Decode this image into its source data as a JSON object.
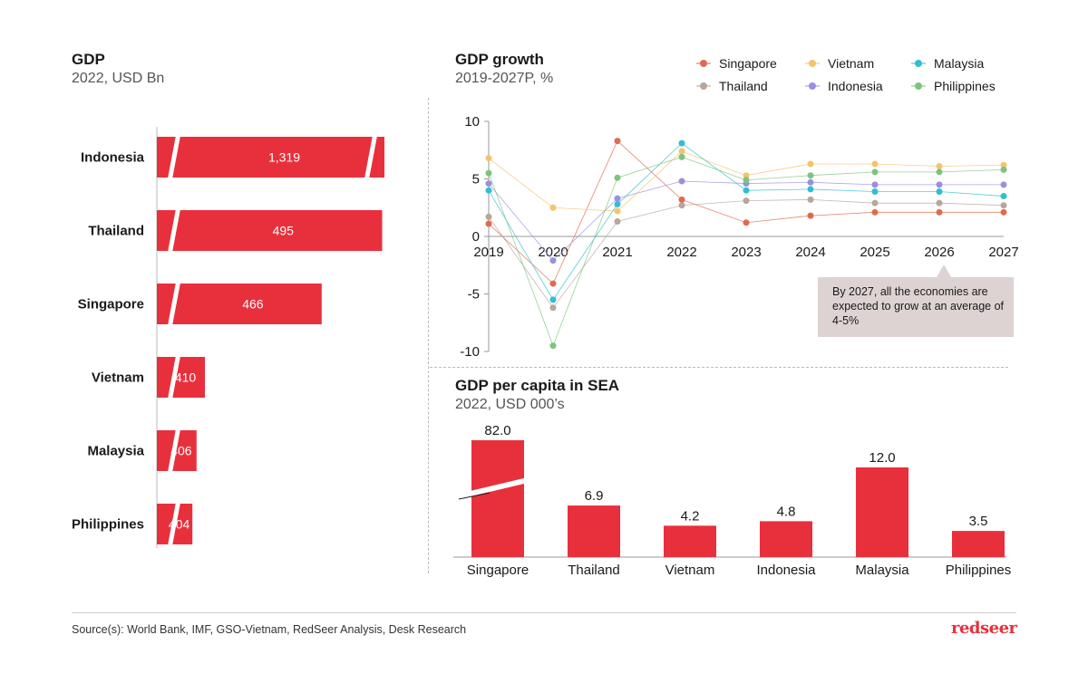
{
  "brand": {
    "accent": "#e8303c",
    "logo_text": "redseer"
  },
  "footer": {
    "source": "Source(s): World Bank, IMF, GSO-Vietnam, RedSeer Analysis, Desk Research"
  },
  "callout": {
    "text": "By 2027, all the economies are expected to grow at an average of 4-5%"
  },
  "chart_data": [
    {
      "type": "bar",
      "orientation": "horizontal",
      "title": "GDP",
      "subtitle": "2022, USD Bn",
      "categories": [
        "Indonesia",
        "Thailand",
        "Singapore",
        "Vietnam",
        "Malaysia",
        "Philippines"
      ],
      "values": [
        1319,
        495,
        466,
        410,
        406,
        404
      ],
      "value_labels": [
        "1,319",
        "495",
        "466",
        "410",
        "406",
        "404"
      ],
      "axis_break": true,
      "color": "#e8303c"
    },
    {
      "type": "line",
      "title": "GDP growth",
      "subtitle": "2019-2027P, %",
      "x": [
        "2019",
        "2020",
        "2021",
        "2022",
        "2023",
        "2024",
        "2025",
        "2026",
        "2027"
      ],
      "ylim": [
        -10,
        10
      ],
      "yticks": [
        "10",
        "5",
        "0",
        "-5",
        "-10"
      ],
      "legend_position": "top-right",
      "series": [
        {
          "name": "Singapore",
          "color": "#e06a4e",
          "values": [
            1.1,
            -4.1,
            8.3,
            3.2,
            1.2,
            1.8,
            2.1,
            2.1,
            2.1
          ]
        },
        {
          "name": "Vietnam",
          "color": "#f5c36b",
          "values": [
            6.8,
            2.5,
            2.2,
            7.4,
            5.3,
            6.3,
            6.3,
            6.1,
            6.2
          ]
        },
        {
          "name": "Malaysia",
          "color": "#2fbfd0",
          "values": [
            4.0,
            -5.5,
            2.8,
            8.1,
            4.0,
            4.1,
            3.9,
            3.9,
            3.5
          ]
        },
        {
          "name": "Thailand",
          "color": "#b8a59c",
          "values": [
            1.7,
            -6.2,
            1.3,
            2.7,
            3.1,
            3.2,
            2.9,
            2.9,
            2.7
          ]
        },
        {
          "name": "Indonesia",
          "color": "#9b8fe0",
          "values": [
            4.6,
            -2.1,
            3.3,
            4.8,
            4.6,
            4.7,
            4.5,
            4.5,
            4.5
          ]
        },
        {
          "name": "Philippines",
          "color": "#7cc47f",
          "values": [
            5.5,
            -9.5,
            5.1,
            6.9,
            4.9,
            5.3,
            5.6,
            5.6,
            5.8
          ]
        }
      ]
    },
    {
      "type": "bar",
      "title": "GDP per capita in SEA",
      "subtitle": "2022, USD 000’s",
      "categories": [
        "Singapore",
        "Thailand",
        "Vietnam",
        "Indonesia",
        "Malaysia",
        "Philippines"
      ],
      "values": [
        82.0,
        6.9,
        4.2,
        4.8,
        12.0,
        3.5
      ],
      "value_labels": [
        "82.0",
        "6.9",
        "4.2",
        "4.8",
        "12.0",
        "3.5"
      ],
      "axis_break": true,
      "color": "#e8303c"
    }
  ]
}
